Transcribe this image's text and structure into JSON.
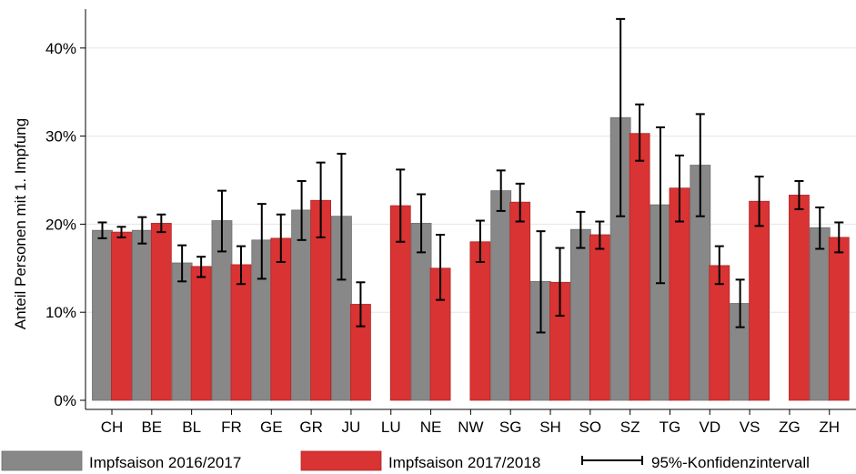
{
  "chart_data": {
    "type": "bar",
    "categories": [
      "CH",
      "BE",
      "BL",
      "FR",
      "GE",
      "GR",
      "JU",
      "LU",
      "NE",
      "NW",
      "SG",
      "SH",
      "SO",
      "SZ",
      "TG",
      "VD",
      "VS",
      "ZG",
      "ZH"
    ],
    "series": [
      {
        "name": "Impfsaison 2016/2017",
        "color": "#888888",
        "values": [
          19.3,
          19.3,
          15.6,
          20.4,
          18.2,
          21.6,
          20.9,
          null,
          20.1,
          null,
          23.8,
          13.5,
          19.4,
          32.1,
          22.2,
          26.7,
          11.0,
          null,
          19.6
        ],
        "ci_low": [
          18.4,
          17.8,
          13.5,
          16.9,
          13.8,
          18.2,
          13.7,
          null,
          16.8,
          null,
          21.5,
          7.7,
          17.3,
          20.9,
          13.3,
          20.9,
          8.3,
          null,
          17.2
        ],
        "ci_high": [
          20.2,
          20.8,
          17.6,
          23.8,
          22.3,
          24.9,
          28.0,
          null,
          23.4,
          null,
          26.1,
          19.2,
          21.4,
          43.3,
          31.0,
          32.5,
          13.7,
          null,
          21.9
        ]
      },
      {
        "name": "Impfsaison 2017/2018",
        "color": "#d93333",
        "values": [
          19.1,
          20.1,
          15.2,
          15.4,
          18.4,
          22.7,
          10.9,
          22.1,
          15.0,
          18.0,
          22.5,
          13.4,
          18.8,
          30.3,
          24.1,
          15.3,
          22.6,
          23.3,
          18.5
        ],
        "ci_low": [
          18.5,
          19.1,
          14.0,
          13.2,
          15.7,
          18.5,
          8.4,
          18.0,
          11.4,
          15.7,
          20.3,
          9.6,
          17.2,
          27.2,
          20.3,
          13.2,
          19.8,
          21.7,
          16.8
        ],
        "ci_high": [
          19.7,
          21.1,
          16.3,
          17.5,
          21.1,
          27.0,
          13.4,
          26.2,
          18.8,
          20.4,
          24.6,
          17.3,
          20.3,
          33.6,
          27.8,
          17.5,
          25.4,
          24.9,
          20.2
        ]
      }
    ],
    "ylabel": "Anteil Personen mit 1. Impfung",
    "ylim": [
      0,
      45
    ],
    "yticks": [
      0,
      10,
      20,
      30,
      40
    ],
    "ytick_labels": [
      "0%",
      "10%",
      "20%",
      "30%",
      "40%"
    ],
    "grid": true,
    "legend_position": "bottom",
    "legend": [
      {
        "label": "Impfsaison 2016/2017",
        "kind": "bar",
        "color": "#888888"
      },
      {
        "label": "Impfsaison 2017/2018",
        "kind": "bar",
        "color": "#d93333"
      },
      {
        "label": "95%-Konfidenzintervall",
        "kind": "errorbar",
        "color": "#000000"
      }
    ]
  }
}
